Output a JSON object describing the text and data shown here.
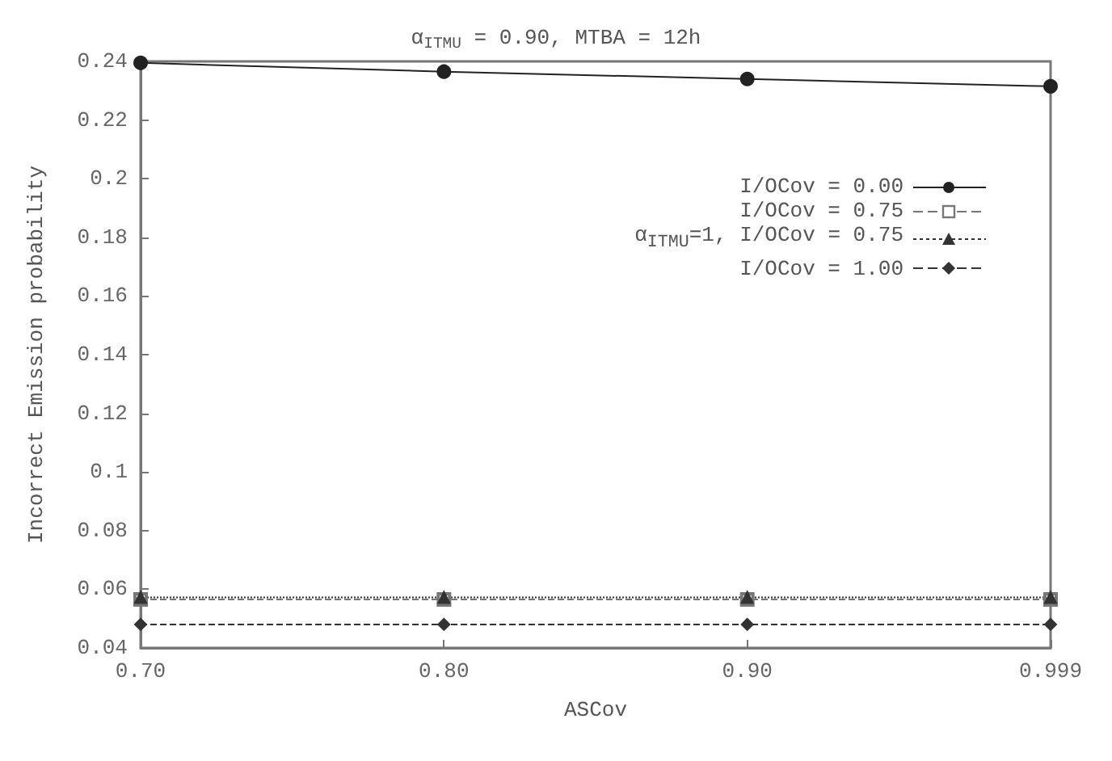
{
  "chart_data": {
    "type": "line",
    "title": "α$_{ITMU}$ = 0.90, MTBA = 12h",
    "xlabel": "ASCov",
    "ylabel": "Incorrect Emission probability",
    "categories": [
      "0.70",
      "0.80",
      "0.90",
      "0.999"
    ],
    "series": [
      {
        "name": "I/OCov = 0.00",
        "color": "#222222",
        "values": [
          0.2395,
          0.2365,
          0.234,
          0.2315
        ],
        "marker": "circle",
        "line_style": "solid"
      },
      {
        "name": "I/OCov = 0.75",
        "color": "#777777",
        "values": [
          0.0565,
          0.0565,
          0.0565,
          0.0565
        ],
        "marker": "square",
        "line_style": "dashed"
      },
      {
        "name": "α$_{ITMU}$=1, I/OCov = 0.75",
        "color": "#333333",
        "values": [
          0.0572,
          0.0572,
          0.0572,
          0.0572
        ],
        "marker": "triangle",
        "line_style": "dotted"
      },
      {
        "name": "I/OCov = 1.00",
        "color": "#333333",
        "values": [
          0.048,
          0.048,
          0.048,
          0.048
        ],
        "marker": "diamond",
        "line_style": "dashed"
      }
    ],
    "ylim": [
      0.04,
      0.24
    ],
    "yticks": [
      0.04,
      0.06,
      0.08,
      0.1,
      0.12,
      0.14,
      0.16,
      0.18,
      0.2,
      0.22,
      0.24
    ],
    "grid": false,
    "legend": "top right"
  }
}
